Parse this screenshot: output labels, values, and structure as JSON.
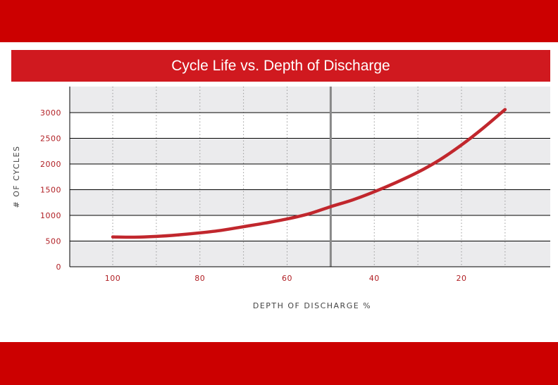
{
  "header": {
    "title": "Cycle Life vs. Depth of Discharge"
  },
  "chart_data": {
    "type": "line",
    "title": "Cycle Life vs. Depth of Discharge",
    "xlabel": "DEPTH OF DISCHARGE %",
    "ylabel": "# OF CYCLES",
    "x_reversed": true,
    "xlim": [
      100,
      10
    ],
    "ylim": [
      0,
      3000
    ],
    "x_ticks": [
      "100",
      "80",
      "60",
      "40",
      "20"
    ],
    "y_ticks": [
      "0",
      "500",
      "1000",
      "1500",
      "2000",
      "2500",
      "3000"
    ],
    "grid": true,
    "alternating_bands": true,
    "reference_line_x": 50,
    "series": [
      {
        "color": "#c1272d",
        "x": [
          100,
          95,
          90,
          85,
          80,
          75,
          70,
          65,
          60,
          55,
          50,
          45,
          40,
          35,
          30,
          25,
          20,
          15,
          10
        ],
        "y": [
          580,
          575,
          590,
          620,
          660,
          710,
          780,
          850,
          930,
          1030,
          1170,
          1300,
          1460,
          1640,
          1840,
          2080,
          2370,
          2700,
          3060
        ]
      }
    ],
    "colors": {
      "line": "#c1272d",
      "tick_label": "#b01e23",
      "band": "#ebebed",
      "grid": "#000000",
      "reference": "#888888"
    }
  }
}
